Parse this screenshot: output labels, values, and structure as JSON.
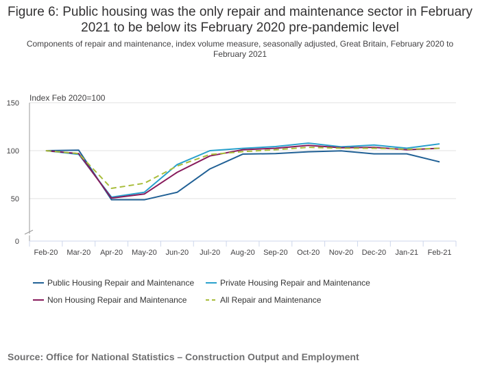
{
  "chart_data": {
    "type": "line",
    "title": "Figure 6: Public housing was the only repair and maintenance sector in February 2021 to be below its February 2020 pre-pandemic level",
    "subtitle": "Components of repair and maintenance, index volume measure, seasonally adjusted, Great Britain, February 2020 to February 2021",
    "ylabel": "Index Feb 2020=100",
    "xlabel": "",
    "ylim": [
      0,
      150
    ],
    "yticks": [
      "0",
      "50",
      "100",
      "150"
    ],
    "ytick_values": [
      0,
      50,
      100,
      150
    ],
    "grid": true,
    "legend_position": "bottom",
    "categories": [
      "Feb-20",
      "Mar-20",
      "Apr-20",
      "May-20",
      "Jun-20",
      "Jul-20",
      "Aug-20",
      "Sep-20",
      "Oct-20",
      "Nov-20",
      "Dec-20",
      "Jan-21",
      "Feb-21"
    ],
    "series": [
      {
        "name": "Public Housing Repair and Maintenance",
        "color": "#206095",
        "dashed": false,
        "values": [
          100,
          100.5,
          48.8,
          48.8,
          56.6,
          81,
          96.4,
          97,
          98.8,
          99.8,
          96.7,
          96.7,
          88.3
        ]
      },
      {
        "name": "Private Housing Repair and Maintenance",
        "color": "#27a0cc",
        "dashed": false,
        "values": [
          100,
          96.2,
          51.5,
          56.6,
          85.5,
          100,
          102.4,
          104.3,
          107.9,
          104,
          105.9,
          102.6,
          107.1
        ]
      },
      {
        "name": "Non Housing Repair and Maintenance",
        "color": "#871a5b",
        "dashed": false,
        "values": [
          100,
          97,
          50.5,
          54.8,
          77.4,
          94.5,
          101,
          102.5,
          105.5,
          103,
          103.5,
          101,
          102.5
        ]
      },
      {
        "name": "All Repair and Maintenance",
        "color": "#a8bd3a",
        "dashed": true,
        "values": [
          100,
          97,
          60.7,
          66,
          84,
          96,
          99,
          101,
          103.5,
          102.5,
          102.5,
          101.5,
          102.5
        ]
      }
    ]
  },
  "source": "Source: Office for National Statistics – Construction Output and Employment"
}
